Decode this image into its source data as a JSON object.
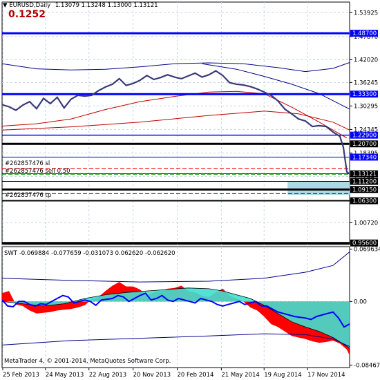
{
  "header": {
    "symbol": "EURUSD,Daily",
    "ohlc": "1.13079 1.13248 1.13000 1.13121",
    "value": "0.1252"
  },
  "orders": {
    "sl": "#262857476 sl",
    "sell": "#262857476 sell 0.50",
    "tp": "#262857476 tp"
  },
  "indicator": {
    "label": "SWT -0.069884 -0.077659 -0.031073 0.062620 -0.062620"
  },
  "footer": {
    "copyright": "MetaTrader 4, © 2001-2014, MetaQuotes Software Corp."
  },
  "colors": {
    "price": "#3a3a78",
    "h_level": "#0000ff",
    "black_level": "#000000",
    "ma_red": "#c00000",
    "band_blue": "#00008b",
    "swt_red": "#ff0000",
    "swt_cyan": "#40e0d0",
    "swt_line": "#0000ff",
    "grid": "#c8d4ea",
    "zone": "#add8e6"
  },
  "chart_data": [
    {
      "type": "line",
      "title": "EURUSD,Daily",
      "x_ticks": [
        "25 Feb 2013",
        "24 May 2013",
        "22 Aug 2013",
        "20 Nov 2013",
        "20 Feb 2014",
        "21 May 2014",
        "19 Aug 2014",
        "17 Nov 2014"
      ],
      "y_ticks": [
        1.53925,
        1.4787,
        1.4202,
        1.36245,
        1.30295,
        1.24345,
        1.18395,
        1.12445,
        1.063,
        1.0072,
        0.956
      ],
      "y_tick_labels": [
        "1.53925",
        "1.47870",
        "1.42020",
        "1.36245",
        "1.30295",
        "1.24345",
        "1.18395",
        "1.12445",
        "1.06300",
        "1.00720",
        "0.95600"
      ],
      "ylim": [
        0.952,
        1.566
      ],
      "price_points": [
        [
          0,
          1.306
        ],
        [
          10,
          1.301
        ],
        [
          20,
          1.292
        ],
        [
          30,
          1.305
        ],
        [
          40,
          1.314
        ],
        [
          50,
          1.296
        ],
        [
          60,
          1.322
        ],
        [
          70,
          1.309
        ],
        [
          80,
          1.325
        ],
        [
          90,
          1.298
        ],
        [
          100,
          1.32
        ],
        [
          110,
          1.33
        ],
        [
          120,
          1.328
        ],
        [
          130,
          1.33
        ],
        [
          140,
          1.342
        ],
        [
          150,
          1.351
        ],
        [
          160,
          1.358
        ],
        [
          170,
          1.372
        ],
        [
          180,
          1.355
        ],
        [
          190,
          1.36
        ],
        [
          200,
          1.368
        ],
        [
          210,
          1.38
        ],
        [
          220,
          1.37
        ],
        [
          230,
          1.375
        ],
        [
          240,
          1.382
        ],
        [
          250,
          1.376
        ],
        [
          260,
          1.372
        ],
        [
          270,
          1.379
        ],
        [
          280,
          1.386
        ],
        [
          290,
          1.376
        ],
        [
          300,
          1.382
        ],
        [
          310,
          1.392
        ],
        [
          320,
          1.38
        ],
        [
          330,
          1.362
        ],
        [
          340,
          1.358
        ],
        [
          350,
          1.356
        ],
        [
          360,
          1.352
        ],
        [
          370,
          1.346
        ],
        [
          380,
          1.338
        ],
        [
          390,
          1.33
        ],
        [
          400,
          1.316
        ],
        [
          410,
          1.295
        ],
        [
          420,
          1.283
        ],
        [
          430,
          1.27
        ],
        [
          440,
          1.265
        ],
        [
          450,
          1.251
        ],
        [
          460,
          1.253
        ],
        [
          470,
          1.251
        ],
        [
          480,
          1.237
        ],
        [
          490,
          1.226
        ],
        [
          495,
          1.198
        ],
        [
          500,
          1.136
        ],
        [
          504,
          1.131
        ]
      ],
      "ma_red_points": [
        [
          0,
          1.252
        ],
        [
          50,
          1.258
        ],
        [
          100,
          1.27
        ],
        [
          150,
          1.294
        ],
        [
          200,
          1.314
        ],
        [
          250,
          1.327
        ],
        [
          300,
          1.338
        ],
        [
          340,
          1.34
        ],
        [
          380,
          1.334
        ],
        [
          420,
          1.3
        ],
        [
          460,
          1.262
        ],
        [
          500,
          1.222
        ]
      ],
      "ma_red2_points": [
        [
          0,
          1.242
        ],
        [
          100,
          1.25
        ],
        [
          200,
          1.262
        ],
        [
          300,
          1.279
        ],
        [
          380,
          1.29
        ],
        [
          430,
          1.283
        ],
        [
          480,
          1.262
        ],
        [
          504,
          1.242
        ]
      ],
      "band_upper_points": [
        [
          0,
          1.41
        ],
        [
          50,
          1.397
        ],
        [
          100,
          1.394
        ],
        [
          150,
          1.396
        ],
        [
          200,
          1.402
        ],
        [
          250,
          1.41
        ],
        [
          300,
          1.412
        ],
        [
          350,
          1.41
        ],
        [
          400,
          1.4
        ],
        [
          440,
          1.39
        ],
        [
          480,
          1.398
        ],
        [
          504,
          1.413
        ]
      ],
      "band_down_points": [
        [
          290,
          1.41
        ],
        [
          340,
          1.396
        ],
        [
          380,
          1.378
        ],
        [
          420,
          1.358
        ],
        [
          460,
          1.334
        ],
        [
          504,
          1.295
        ]
      ],
      "levels": [
        {
          "price": 1.487,
          "label": "1.48700",
          "color": "#0000ff",
          "width": 3
        },
        {
          "price": 1.333,
          "label": "1.33300",
          "color": "#0000ff",
          "width": 3
        },
        {
          "price": 1.229,
          "label": "1.22900",
          "color": "#0000ff",
          "width": 1.5
        },
        {
          "price": 1.207,
          "label": "1.20700",
          "color": "#000000",
          "width": 3
        },
        {
          "price": 1.1734,
          "label": "1.17340",
          "color": "#0000ff",
          "width": 1
        },
        {
          "price": 1.13121,
          "label": "1.13121",
          "color": "#000000",
          "width": 1
        },
        {
          "price": 1.112,
          "label": "1.11200",
          "color": "#000000",
          "width": 1
        },
        {
          "price": 1.0915,
          "label": "1.09150",
          "color": "#000000",
          "width": 3
        },
        {
          "price": 1.063,
          "label": "1.06300",
          "color": "#000000",
          "width": 2
        },
        {
          "price": 0.956,
          "label": "0.95600",
          "color": "#000000",
          "width": 3
        }
      ],
      "order_lines": [
        {
          "price": 1.145,
          "color": "#ff0000"
        },
        {
          "price": 1.13,
          "color": "#00a000"
        },
        {
          "price": 1.081,
          "color": "#000000"
        }
      ]
    },
    {
      "type": "area",
      "title": "SWT",
      "y_ticks": [
        0.069634,
        0.0,
        -0.084673
      ],
      "y_tick_labels": [
        "0.069634",
        "0.00",
        "-0.084673"
      ],
      "ylim": [
        -0.088,
        0.073
      ],
      "hist_points": [
        [
          0,
          0.011
        ],
        [
          10,
          0.014
        ],
        [
          20,
          -0.004
        ],
        [
          30,
          -0.006
        ],
        [
          40,
          -0.012
        ],
        [
          50,
          -0.016
        ],
        [
          60,
          -0.015
        ],
        [
          70,
          -0.014
        ],
        [
          80,
          -0.012
        ],
        [
          90,
          -0.011
        ],
        [
          100,
          -0.01
        ],
        [
          110,
          -0.008
        ],
        [
          120,
          -0.005
        ],
        [
          130,
          0.003
        ],
        [
          140,
          0.006
        ],
        [
          150,
          0.014
        ],
        [
          160,
          0.021
        ],
        [
          170,
          0.026
        ],
        [
          180,
          0.02
        ],
        [
          190,
          0.02
        ],
        [
          200,
          0.016
        ],
        [
          210,
          0.008
        ],
        [
          220,
          0.012
        ],
        [
          230,
          0.014
        ],
        [
          240,
          0.017
        ],
        [
          250,
          0.018
        ],
        [
          260,
          0.021
        ],
        [
          270,
          0.014
        ],
        [
          280,
          0.012
        ],
        [
          290,
          0.008
        ],
        [
          300,
          0.006
        ],
        [
          310,
          0.012
        ],
        [
          320,
          0.017
        ],
        [
          330,
          0.008
        ],
        [
          340,
          0.004
        ],
        [
          350,
          0.0
        ],
        [
          360,
          -0.008
        ],
        [
          370,
          -0.012
        ],
        [
          380,
          -0.02
        ],
        [
          390,
          -0.03
        ],
        [
          400,
          -0.034
        ],
        [
          410,
          -0.04
        ],
        [
          420,
          -0.046
        ],
        [
          430,
          -0.048
        ],
        [
          440,
          -0.05
        ],
        [
          450,
          -0.053
        ],
        [
          460,
          -0.055
        ],
        [
          470,
          -0.054
        ],
        [
          480,
          -0.052
        ],
        [
          490,
          -0.056
        ],
        [
          500,
          -0.064
        ],
        [
          504,
          -0.072
        ]
      ],
      "cyan_points": [
        [
          0,
          0.0
        ],
        [
          30,
          -0.003
        ],
        [
          60,
          -0.006
        ],
        [
          90,
          -0.003
        ],
        [
          120,
          0.004
        ],
        [
          150,
          0.009
        ],
        [
          180,
          0.012
        ],
        [
          210,
          0.014
        ],
        [
          240,
          0.016
        ],
        [
          270,
          0.018
        ],
        [
          300,
          0.017
        ],
        [
          320,
          0.014
        ],
        [
          340,
          0.009
        ],
        [
          360,
          0.004
        ],
        [
          380,
          -0.005
        ],
        [
          400,
          -0.016
        ],
        [
          420,
          -0.027
        ],
        [
          440,
          -0.034
        ],
        [
          460,
          -0.04
        ],
        [
          480,
          -0.048
        ],
        [
          504,
          -0.062
        ]
      ],
      "signal_points": [
        [
          0,
          0.002
        ],
        [
          8,
          -0.006
        ],
        [
          16,
          -0.007
        ],
        [
          24,
          0.0
        ],
        [
          32,
          0.0
        ],
        [
          40,
          -0.004
        ],
        [
          48,
          -0.006
        ],
        [
          56,
          -0.003
        ],
        [
          64,
          -0.004
        ],
        [
          72,
          0.0
        ],
        [
          80,
          0.004
        ],
        [
          88,
          0.008
        ],
        [
          96,
          0.006
        ],
        [
          104,
          -0.002
        ],
        [
          112,
          0.0
        ],
        [
          120,
          0.002
        ],
        [
          128,
          0.0
        ],
        [
          136,
          -0.005
        ],
        [
          144,
          0.002
        ],
        [
          152,
          0.003
        ],
        [
          160,
          0.004
        ],
        [
          168,
          0.008
        ],
        [
          176,
          0.006
        ],
        [
          184,
          0.0
        ],
        [
          192,
          0.004
        ],
        [
          200,
          0.008
        ],
        [
          208,
          0.011
        ],
        [
          216,
          0.002
        ],
        [
          224,
          0.004
        ],
        [
          232,
          0.008
        ],
        [
          240,
          0.002
        ],
        [
          248,
          0.0
        ],
        [
          256,
          0.004
        ],
        [
          264,
          0.002
        ],
        [
          272,
          0.0
        ],
        [
          280,
          -0.002
        ],
        [
          288,
          0.004
        ],
        [
          296,
          0.002
        ],
        [
          304,
          0.0
        ],
        [
          312,
          -0.004
        ],
        [
          320,
          -0.006
        ],
        [
          328,
          -0.004
        ],
        [
          336,
          -0.002
        ],
        [
          344,
          0.0
        ],
        [
          352,
          -0.004
        ],
        [
          360,
          -0.002
        ],
        [
          368,
          0.0
        ],
        [
          376,
          -0.006
        ],
        [
          384,
          -0.006
        ],
        [
          392,
          -0.01
        ],
        [
          400,
          -0.014
        ],
        [
          408,
          -0.016
        ],
        [
          416,
          -0.018
        ],
        [
          424,
          -0.02
        ],
        [
          432,
          -0.021
        ],
        [
          440,
          -0.022
        ],
        [
          448,
          -0.024
        ],
        [
          456,
          -0.02
        ],
        [
          464,
          -0.018
        ],
        [
          472,
          -0.016
        ],
        [
          480,
          -0.014
        ],
        [
          488,
          -0.022
        ],
        [
          496,
          -0.034
        ],
        [
          504,
          -0.03
        ]
      ],
      "upper_env_points": [
        [
          0,
          0.031
        ],
        [
          100,
          0.028
        ],
        [
          200,
          0.026
        ],
        [
          300,
          0.027
        ],
        [
          380,
          0.031
        ],
        [
          440,
          0.039
        ],
        [
          480,
          0.048
        ],
        [
          504,
          0.066
        ]
      ],
      "lower_env_points": [
        [
          0,
          -0.058
        ],
        [
          100,
          -0.052
        ],
        [
          200,
          -0.049
        ],
        [
          300,
          -0.046
        ],
        [
          380,
          -0.043
        ],
        [
          440,
          -0.044
        ],
        [
          480,
          -0.05
        ],
        [
          504,
          -0.06
        ]
      ]
    }
  ]
}
